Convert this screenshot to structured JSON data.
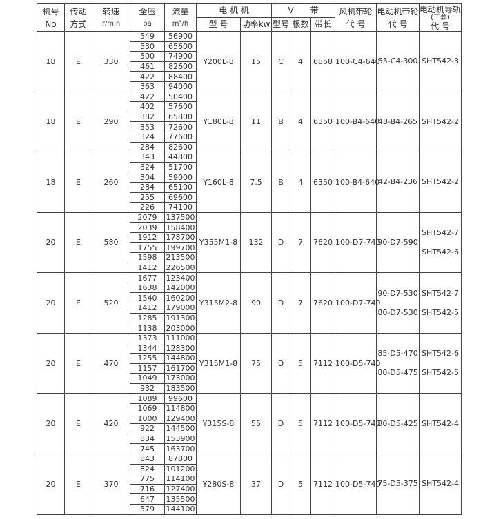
{
  "header": {
    "machine_no": "机号",
    "machine_no_sub": "No",
    "drive": "传动",
    "drive_sub": "方式",
    "speed": "转速",
    "speed_sub": "r/min",
    "pressure": "全压",
    "pressure_sub": "pa",
    "flow": "流量",
    "flow_sub": "m³/h",
    "motor": "电 机 机",
    "motor_model": "型 号",
    "motor_power": "功率kw",
    "vbelt": "V　　带",
    "belt_type": "型号",
    "belt_count": "根数",
    "belt_length": "带长",
    "fan_pulley": "风机带轮",
    "fan_pulley_sub": "代 号",
    "motor_pulley": "电动机带轮",
    "motor_pulley_sub": "代 号",
    "rail": "电动机导轨",
    "rail_sub1": "(二套)",
    "rail_sub2": "代 号"
  },
  "groups": [
    {
      "no": "18",
      "drive": "E",
      "speed": "330",
      "pressure": [
        "549",
        "530",
        "500",
        "461",
        "422",
        "363"
      ],
      "flow": [
        "56900",
        "65600",
        "74900",
        "82600",
        "88400",
        "94000"
      ],
      "motor": "Y200L-8",
      "power": "15",
      "belt_type": "C",
      "belt_count": "4",
      "belt_length": "6858",
      "fan_pulley": "100-C4-640",
      "motor_pulley": [
        "55-C4-300"
      ],
      "rail": [
        "SHT542-3"
      ]
    },
    {
      "no": "18",
      "drive": "E",
      "speed": "290",
      "pressure": [
        "422",
        "402",
        "382",
        "353",
        "324",
        "284"
      ],
      "flow": [
        "50400",
        "57600",
        "65800",
        "72600",
        "77600",
        "82600"
      ],
      "motor": "Y180L-8",
      "power": "11",
      "belt_type": "B",
      "belt_count": "4",
      "belt_length": "6350",
      "fan_pulley": "100-B4-640",
      "motor_pulley": [
        "48-B4-265"
      ],
      "rail": [
        "SHT542-2"
      ]
    },
    {
      "no": "18",
      "drive": "E",
      "speed": "260",
      "pressure": [
        "343",
        "324",
        "304",
        "284",
        "255",
        "226"
      ],
      "flow": [
        "44800",
        "51700",
        "59000",
        "65100",
        "69600",
        "74100"
      ],
      "motor": "Y160L-8",
      "power": "7.5",
      "belt_type": "B",
      "belt_count": "4",
      "belt_length": "6350",
      "fan_pulley": "100-B4-640",
      "motor_pulley": [
        "42-B4-236"
      ],
      "rail": [
        "SHT542-2"
      ]
    },
    {
      "no": "20",
      "drive": "E",
      "speed": "580",
      "pressure": [
        "2079",
        "2039",
        "1912",
        "1755",
        "1598",
        "1412"
      ],
      "flow": [
        "137500",
        "158400",
        "178700",
        "199700",
        "213500",
        "226500"
      ],
      "motor": "Y355M1-8",
      "power": "132",
      "belt_type": "D",
      "belt_count": "7",
      "belt_length": "7620",
      "fan_pulley": "100-D7-740",
      "motor_pulley": [
        "90-D7-590"
      ],
      "rail": [
        "SHT542-7",
        "SHT542-6"
      ]
    },
    {
      "no": "20",
      "drive": "E",
      "speed": "520",
      "pressure": [
        "1677",
        "1638",
        "1540",
        "1412",
        "1285",
        "1138"
      ],
      "flow": [
        "123400",
        "142000",
        "160200",
        "179000",
        "191300",
        "203000"
      ],
      "motor": "Y315M2-8",
      "power": "90",
      "belt_type": "D",
      "belt_count": "7",
      "belt_length": "7620",
      "fan_pulley": "100-D7-740",
      "motor_pulley": [
        "90-D7-530",
        "80-D7-530"
      ],
      "rail": [
        "SHT542-7",
        "SHT542-5"
      ]
    },
    {
      "no": "20",
      "drive": "E",
      "speed": "470",
      "pressure": [
        "1373",
        "1344",
        "1255",
        "1157",
        "1049",
        "932"
      ],
      "flow": [
        "111000",
        "128300",
        "144800",
        "161700",
        "173000",
        "183500"
      ],
      "motor": "Y315M1-8",
      "power": "75",
      "belt_type": "D",
      "belt_count": "5",
      "belt_length": "7112",
      "fan_pulley": "100-D5-740",
      "motor_pulley": [
        "85-D5-470",
        "80-D5-475"
      ],
      "rail": [
        "SHT542-6",
        "SHT542-5"
      ]
    },
    {
      "no": "20",
      "drive": "E",
      "speed": "420",
      "pressure": [
        "1089",
        "1069",
        "1000",
        "922",
        "834",
        "745"
      ],
      "flow": [
        "99600",
        "114800",
        "129400",
        "144500",
        "153900",
        "163700"
      ],
      "motor": "Y315S-8",
      "power": "55",
      "belt_type": "D",
      "belt_count": "5",
      "belt_length": "7112",
      "fan_pulley": "100-D5-740",
      "motor_pulley": [
        "80-D5-425"
      ],
      "rail": [
        "SHT542-4"
      ]
    },
    {
      "no": "20",
      "drive": "E",
      "speed": "370",
      "pressure": [
        "843",
        "824",
        "775",
        "716",
        "647",
        "579"
      ],
      "flow": [
        "87800",
        "101200",
        "114100",
        "127400",
        "135500",
        "144100"
      ],
      "motor": "Y280S-8",
      "power": "37",
      "belt_type": "D",
      "belt_count": "5",
      "belt_length": "7112",
      "fan_pulley": "100-D5-740",
      "motor_pulley": [
        "75-D5-375"
      ],
      "rail": [
        "SHT542-4"
      ]
    }
  ]
}
